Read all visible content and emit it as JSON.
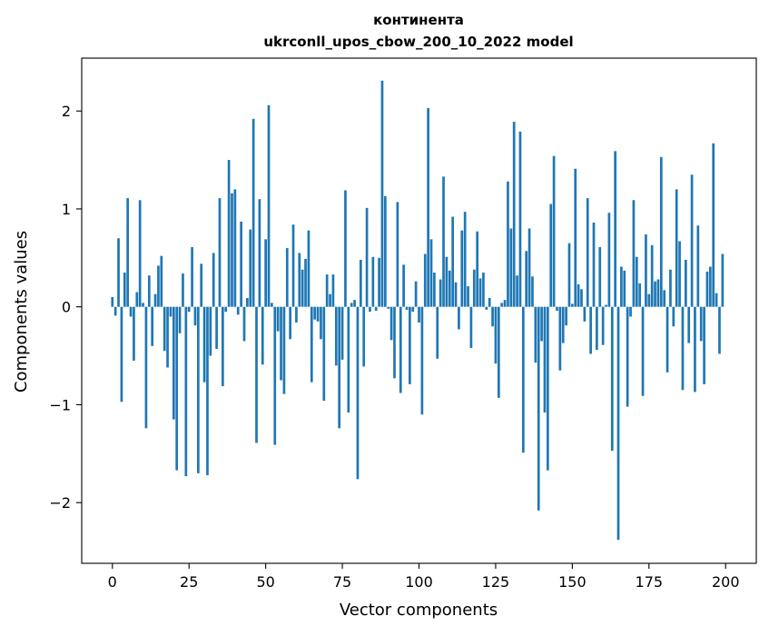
{
  "chart_data": {
    "type": "bar",
    "title_line1": "континента",
    "title_line2": "ukrconll_upos_cbow_200_10_2022 model",
    "xlabel": "Vector components",
    "ylabel": "Components values",
    "xlim": [
      -10,
      210
    ],
    "ylim": [
      -2.62,
      2.54
    ],
    "xticks": [
      0,
      25,
      50,
      75,
      100,
      125,
      150,
      175,
      200
    ],
    "xtick_labels": [
      "0",
      "25",
      "50",
      "75",
      "100",
      "125",
      "150",
      "175",
      "200"
    ],
    "yticks": [
      -2,
      -1,
      0,
      1,
      2
    ],
    "ytick_labels": [
      "−2",
      "−1",
      "0",
      "1",
      "2"
    ],
    "grid": false,
    "bar_color": "#1f77b4",
    "values": [
      0.1,
      -0.09,
      0.7,
      -0.97,
      0.35,
      1.11,
      -0.1,
      -0.55,
      0.15,
      1.09,
      0.04,
      -1.24,
      0.32,
      -0.4,
      0.13,
      0.42,
      0.52,
      -0.45,
      -0.62,
      -0.1,
      -1.15,
      -1.67,
      -0.27,
      0.34,
      -1.73,
      -0.05,
      0.61,
      -0.19,
      -1.7,
      0.44,
      -0.77,
      -1.72,
      -0.5,
      0.55,
      -0.43,
      1.11,
      -0.81,
      -0.05,
      1.5,
      1.16,
      1.2,
      -0.08,
      0.87,
      -0.35,
      0.09,
      0.79,
      1.92,
      -1.39,
      1.1,
      -0.59,
      0.69,
      2.06,
      0.04,
      -1.41,
      -0.25,
      -0.75,
      -0.89,
      0.6,
      -0.33,
      0.84,
      -0.16,
      0.55,
      0.38,
      0.49,
      0.78,
      -0.77,
      -0.13,
      -0.15,
      -0.33,
      -0.96,
      0.33,
      0.13,
      0.33,
      -0.6,
      -1.24,
      -0.54,
      1.19,
      -1.08,
      0.04,
      0.07,
      -1.76,
      0.48,
      -0.61,
      1.01,
      -0.05,
      0.51,
      -0.04,
      0.5,
      2.31,
      1.13,
      -0.02,
      -0.34,
      -0.73,
      1.07,
      -0.88,
      0.43,
      -0.03,
      -0.79,
      -0.05,
      0.26,
      -0.16,
      -1.1,
      0.54,
      2.03,
      0.69,
      0.35,
      -0.53,
      0.28,
      1.33,
      0.51,
      0.37,
      0.92,
      0.25,
      -0.23,
      0.78,
      0.97,
      0.21,
      -0.42,
      0.38,
      0.77,
      0.29,
      0.35,
      -0.03,
      0.09,
      -0.2,
      -0.58,
      -0.93,
      0.04,
      0.07,
      1.28,
      0.8,
      1.89,
      0.32,
      1.79,
      -1.49,
      0.57,
      0.8,
      0.31,
      -0.57,
      -2.08,
      -0.35,
      -1.08,
      -1.67,
      1.05,
      1.54,
      -0.04,
      -0.65,
      -0.37,
      -0.19,
      0.65,
      0.03,
      1.41,
      0.23,
      0.18,
      -0.15,
      1.11,
      -0.48,
      0.86,
      -0.44,
      0.61,
      -0.39,
      0.02,
      0.96,
      -1.47,
      1.59,
      -2.38,
      0.41,
      0.37,
      -1.02,
      -0.1,
      1.09,
      0.51,
      0.24,
      -0.91,
      0.74,
      0.13,
      0.63,
      0.26,
      0.28,
      1.53,
      0.17,
      -0.67,
      0.38,
      -0.2,
      1.2,
      0.67,
      -0.85,
      0.48,
      -0.37,
      1.35,
      -0.87,
      0.83,
      -0.35,
      -0.79,
      0.36,
      0.41,
      1.67,
      0.14,
      -0.48,
      0.54
    ]
  }
}
